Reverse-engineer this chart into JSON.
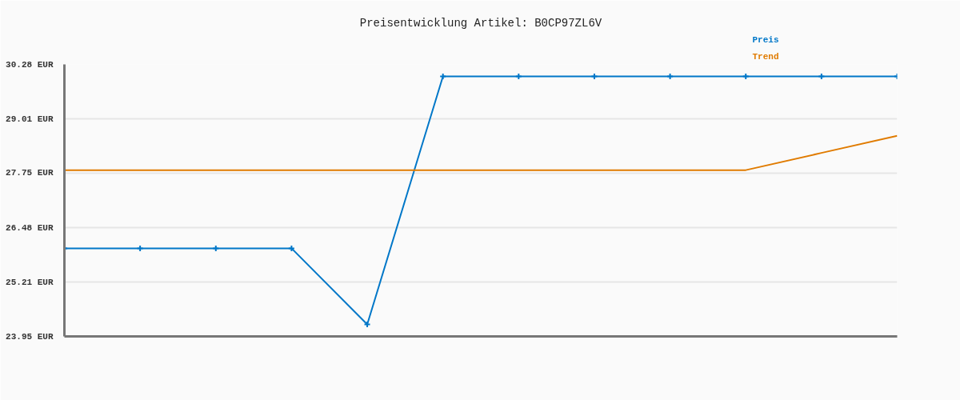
{
  "chart_data": {
    "type": "line",
    "title": "Preisentwicklung Artikel: B0CP97ZL6V",
    "categories": [
      null,
      null,
      null,
      null,
      null,
      null,
      null,
      null,
      null,
      null,
      null,
      null
    ],
    "series": [
      {
        "name": "Preis",
        "color": "#0077c8",
        "marker": "cross",
        "values": [
          26.0,
          26.0,
          26.0,
          26.0,
          24.23,
          30.0,
          30.0,
          30.0,
          30.0,
          30.0,
          30.0,
          30.0
        ]
      },
      {
        "name": "Trend",
        "color": "#e07b00",
        "values": [
          27.82,
          27.82,
          27.82,
          27.82,
          27.82,
          27.82,
          27.82,
          27.82,
          27.82,
          27.82,
          28.22,
          28.62
        ]
      }
    ],
    "ylim": [
      23.95,
      30.28
    ],
    "yticks": [
      {
        "value": 23.95,
        "label": "23.95 EUR"
      },
      {
        "value": 25.21,
        "label": "25.21 EUR"
      },
      {
        "value": 26.48,
        "label": "26.48 EUR"
      },
      {
        "value": 27.75,
        "label": "27.75 EUR"
      },
      {
        "value": 29.01,
        "label": "29.01 EUR"
      },
      {
        "value": 30.28,
        "label": "30.28 EUR"
      }
    ],
    "grid": "y",
    "tick_labels": "y"
  }
}
